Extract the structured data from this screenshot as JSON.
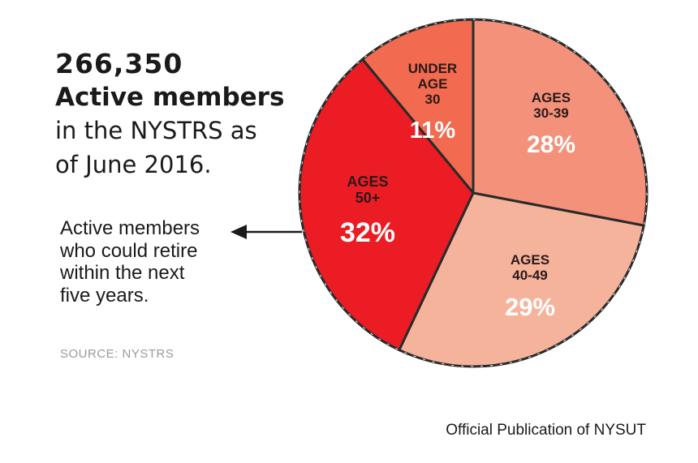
{
  "headline": {
    "number": "266,350",
    "emphasis": "Active members",
    "line1": "in the NYSTRS as",
    "line2": "of June 2016."
  },
  "note": {
    "line1": "Active members",
    "line2": "who could retire",
    "line3": "within the next",
    "line4": "five years."
  },
  "source": "SOURCE: NYSTRS",
  "footer": "Official Publication of NYSUT",
  "chart_data": {
    "type": "pie",
    "slices": [
      {
        "label_lines": [
          "UNDER",
          "AGE",
          "30"
        ],
        "value": 11,
        "value_label": "11%",
        "color": "#f26a4f"
      },
      {
        "label_lines": [
          "AGES",
          "30-39"
        ],
        "value": 28,
        "value_label": "28%",
        "color": "#f3917a"
      },
      {
        "label_lines": [
          "AGES",
          "40-49"
        ],
        "value": 29,
        "value_label": "29%",
        "color": "#f6b39c"
      },
      {
        "label_lines": [
          "AGES",
          "50+"
        ],
        "value": 32,
        "value_label": "32%",
        "color": "#ec1c24"
      }
    ]
  }
}
